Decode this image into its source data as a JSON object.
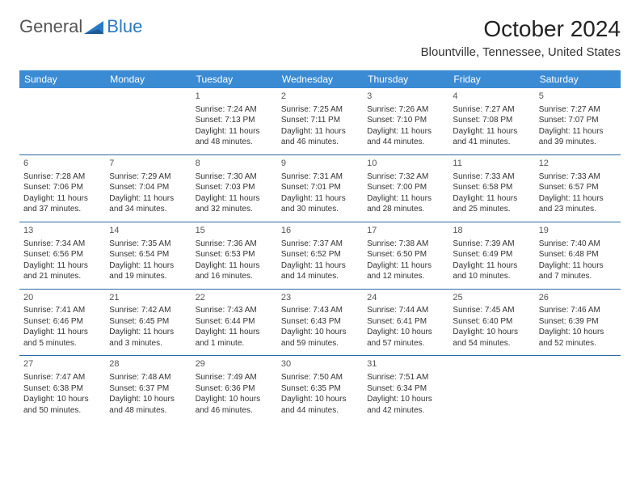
{
  "logo": {
    "general": "General",
    "blue": "Blue"
  },
  "title": "October 2024",
  "subtitle": "Blountville, Tennessee, United States",
  "header_bg": "#3b8bd4",
  "header_fg": "#ffffff",
  "row_border": "#2b6aa8",
  "days": [
    "Sunday",
    "Monday",
    "Tuesday",
    "Wednesday",
    "Thursday",
    "Friday",
    "Saturday"
  ],
  "weeks": [
    [
      {
        "n": "",
        "sr": "",
        "ss": "",
        "dl": ""
      },
      {
        "n": "",
        "sr": "",
        "ss": "",
        "dl": ""
      },
      {
        "n": "1",
        "sr": "Sunrise: 7:24 AM",
        "ss": "Sunset: 7:13 PM",
        "dl": "Daylight: 11 hours and 48 minutes."
      },
      {
        "n": "2",
        "sr": "Sunrise: 7:25 AM",
        "ss": "Sunset: 7:11 PM",
        "dl": "Daylight: 11 hours and 46 minutes."
      },
      {
        "n": "3",
        "sr": "Sunrise: 7:26 AM",
        "ss": "Sunset: 7:10 PM",
        "dl": "Daylight: 11 hours and 44 minutes."
      },
      {
        "n": "4",
        "sr": "Sunrise: 7:27 AM",
        "ss": "Sunset: 7:08 PM",
        "dl": "Daylight: 11 hours and 41 minutes."
      },
      {
        "n": "5",
        "sr": "Sunrise: 7:27 AM",
        "ss": "Sunset: 7:07 PM",
        "dl": "Daylight: 11 hours and 39 minutes."
      }
    ],
    [
      {
        "n": "6",
        "sr": "Sunrise: 7:28 AM",
        "ss": "Sunset: 7:06 PM",
        "dl": "Daylight: 11 hours and 37 minutes."
      },
      {
        "n": "7",
        "sr": "Sunrise: 7:29 AM",
        "ss": "Sunset: 7:04 PM",
        "dl": "Daylight: 11 hours and 34 minutes."
      },
      {
        "n": "8",
        "sr": "Sunrise: 7:30 AM",
        "ss": "Sunset: 7:03 PM",
        "dl": "Daylight: 11 hours and 32 minutes."
      },
      {
        "n": "9",
        "sr": "Sunrise: 7:31 AM",
        "ss": "Sunset: 7:01 PM",
        "dl": "Daylight: 11 hours and 30 minutes."
      },
      {
        "n": "10",
        "sr": "Sunrise: 7:32 AM",
        "ss": "Sunset: 7:00 PM",
        "dl": "Daylight: 11 hours and 28 minutes."
      },
      {
        "n": "11",
        "sr": "Sunrise: 7:33 AM",
        "ss": "Sunset: 6:58 PM",
        "dl": "Daylight: 11 hours and 25 minutes."
      },
      {
        "n": "12",
        "sr": "Sunrise: 7:33 AM",
        "ss": "Sunset: 6:57 PM",
        "dl": "Daylight: 11 hours and 23 minutes."
      }
    ],
    [
      {
        "n": "13",
        "sr": "Sunrise: 7:34 AM",
        "ss": "Sunset: 6:56 PM",
        "dl": "Daylight: 11 hours and 21 minutes."
      },
      {
        "n": "14",
        "sr": "Sunrise: 7:35 AM",
        "ss": "Sunset: 6:54 PM",
        "dl": "Daylight: 11 hours and 19 minutes."
      },
      {
        "n": "15",
        "sr": "Sunrise: 7:36 AM",
        "ss": "Sunset: 6:53 PM",
        "dl": "Daylight: 11 hours and 16 minutes."
      },
      {
        "n": "16",
        "sr": "Sunrise: 7:37 AM",
        "ss": "Sunset: 6:52 PM",
        "dl": "Daylight: 11 hours and 14 minutes."
      },
      {
        "n": "17",
        "sr": "Sunrise: 7:38 AM",
        "ss": "Sunset: 6:50 PM",
        "dl": "Daylight: 11 hours and 12 minutes."
      },
      {
        "n": "18",
        "sr": "Sunrise: 7:39 AM",
        "ss": "Sunset: 6:49 PM",
        "dl": "Daylight: 11 hours and 10 minutes."
      },
      {
        "n": "19",
        "sr": "Sunrise: 7:40 AM",
        "ss": "Sunset: 6:48 PM",
        "dl": "Daylight: 11 hours and 7 minutes."
      }
    ],
    [
      {
        "n": "20",
        "sr": "Sunrise: 7:41 AM",
        "ss": "Sunset: 6:46 PM",
        "dl": "Daylight: 11 hours and 5 minutes."
      },
      {
        "n": "21",
        "sr": "Sunrise: 7:42 AM",
        "ss": "Sunset: 6:45 PM",
        "dl": "Daylight: 11 hours and 3 minutes."
      },
      {
        "n": "22",
        "sr": "Sunrise: 7:43 AM",
        "ss": "Sunset: 6:44 PM",
        "dl": "Daylight: 11 hours and 1 minute."
      },
      {
        "n": "23",
        "sr": "Sunrise: 7:43 AM",
        "ss": "Sunset: 6:43 PM",
        "dl": "Daylight: 10 hours and 59 minutes."
      },
      {
        "n": "24",
        "sr": "Sunrise: 7:44 AM",
        "ss": "Sunset: 6:41 PM",
        "dl": "Daylight: 10 hours and 57 minutes."
      },
      {
        "n": "25",
        "sr": "Sunrise: 7:45 AM",
        "ss": "Sunset: 6:40 PM",
        "dl": "Daylight: 10 hours and 54 minutes."
      },
      {
        "n": "26",
        "sr": "Sunrise: 7:46 AM",
        "ss": "Sunset: 6:39 PM",
        "dl": "Daylight: 10 hours and 52 minutes."
      }
    ],
    [
      {
        "n": "27",
        "sr": "Sunrise: 7:47 AM",
        "ss": "Sunset: 6:38 PM",
        "dl": "Daylight: 10 hours and 50 minutes."
      },
      {
        "n": "28",
        "sr": "Sunrise: 7:48 AM",
        "ss": "Sunset: 6:37 PM",
        "dl": "Daylight: 10 hours and 48 minutes."
      },
      {
        "n": "29",
        "sr": "Sunrise: 7:49 AM",
        "ss": "Sunset: 6:36 PM",
        "dl": "Daylight: 10 hours and 46 minutes."
      },
      {
        "n": "30",
        "sr": "Sunrise: 7:50 AM",
        "ss": "Sunset: 6:35 PM",
        "dl": "Daylight: 10 hours and 44 minutes."
      },
      {
        "n": "31",
        "sr": "Sunrise: 7:51 AM",
        "ss": "Sunset: 6:34 PM",
        "dl": "Daylight: 10 hours and 42 minutes."
      },
      {
        "n": "",
        "sr": "",
        "ss": "",
        "dl": ""
      },
      {
        "n": "",
        "sr": "",
        "ss": "",
        "dl": ""
      }
    ]
  ]
}
